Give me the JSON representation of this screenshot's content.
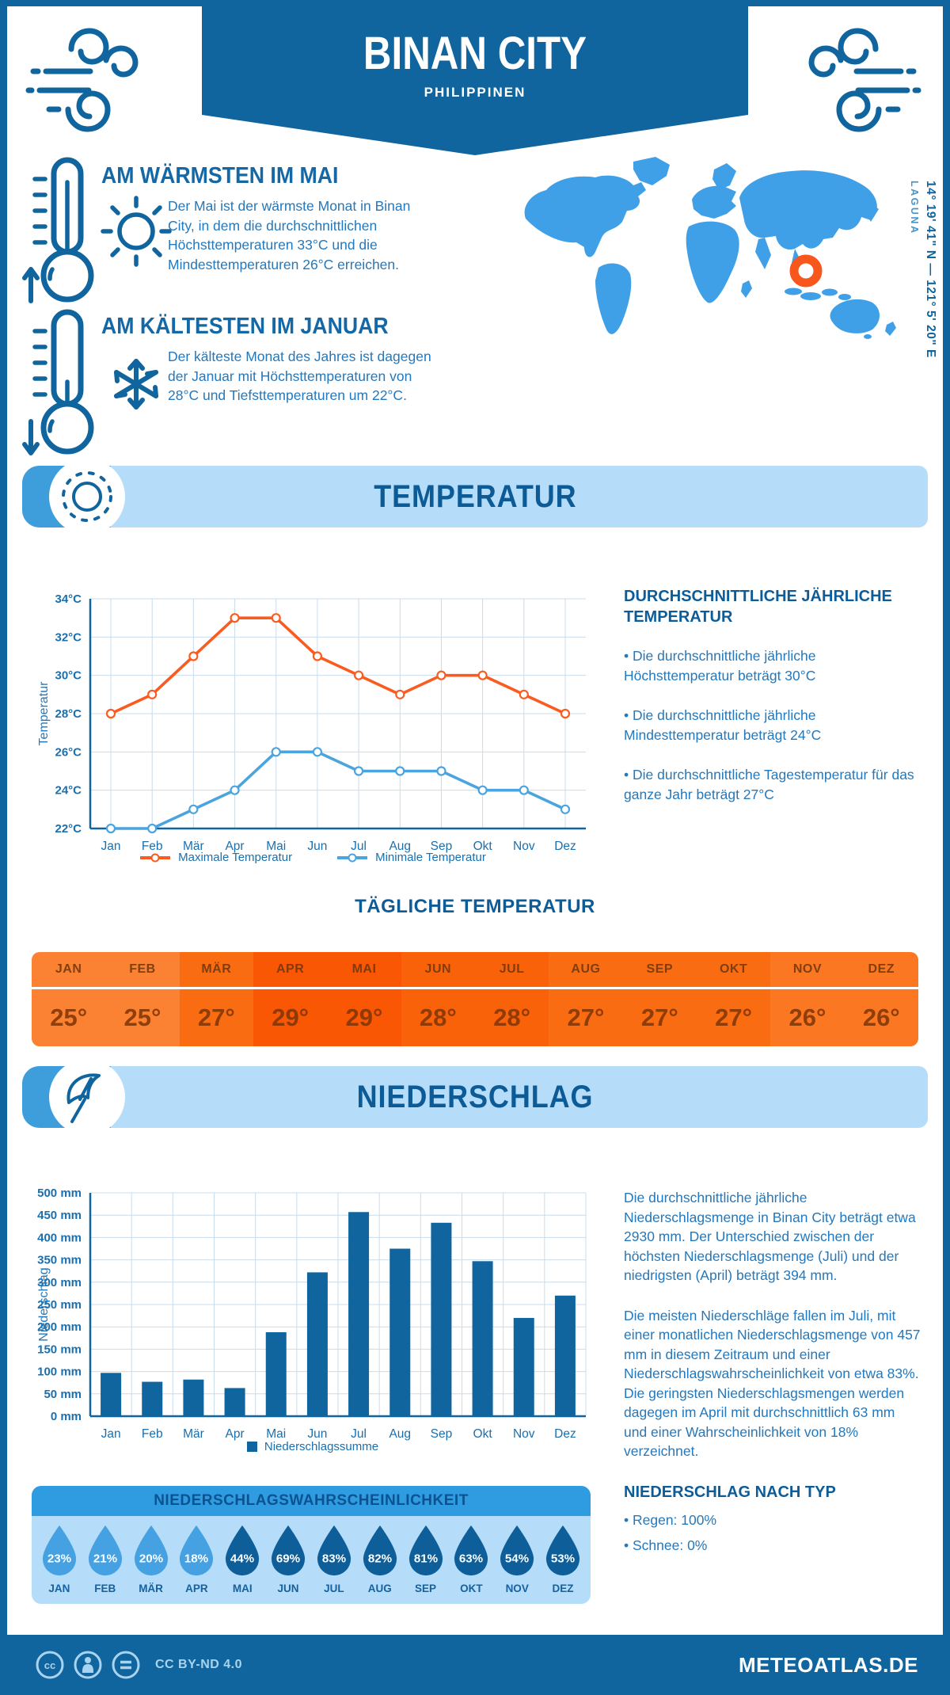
{
  "header": {
    "title": "BINAN CITY",
    "subtitle": "PHILIPPINEN",
    "coordinates": "14° 19' 41\" N — 121° 5' 20\" E",
    "region": "LAGUNA"
  },
  "highlights": {
    "warmest": {
      "heading": "AM WÄRMSTEN IM MAI",
      "text": "Der Mai ist der wärmste Monat in Binan City, in dem die durchschnittlichen Höchsttemperaturen 33°C und die Mindesttemperaturen 26°C erreichen."
    },
    "coldest": {
      "heading": "AM KÄLTESTEN IM JANUAR",
      "text": "Der kälteste Monat des Jahres ist dagegen der Januar mit Höchsttemperaturen von 28°C und Tiefsttemperaturen um 22°C."
    }
  },
  "temperature": {
    "banner": "TEMPERATUR",
    "annual_heading": "DURCHSCHNITTLICHE JÄHRLICHE TEMPERATUR",
    "annual_bullets": [
      "• Die durchschnittliche jährliche Höchsttemperatur beträgt 30°C",
      "• Die durchschnittliche jährliche Mindesttemperatur beträgt 24°C",
      "• Die durchschnittliche Tagestemperatur für das ganze Jahr beträgt 27°C"
    ],
    "daily_heading": "TÄGLICHE TEMPERATUR",
    "daily_months": [
      "JAN",
      "FEB",
      "MÄR",
      "APR",
      "MAI",
      "JUN",
      "JUL",
      "AUG",
      "SEP",
      "OKT",
      "NOV",
      "DEZ"
    ],
    "daily_values": [
      "25°",
      "25°",
      "27°",
      "29°",
      "29°",
      "28°",
      "28°",
      "27°",
      "27°",
      "27°",
      "26°",
      "26°"
    ],
    "daily_cell_colors": [
      "#fb8133",
      "#fb8133",
      "#fa6c12",
      "#f95704",
      "#f95704",
      "#fa6209",
      "#fa6209",
      "#fa6c12",
      "#fa6c12",
      "#fa6c12",
      "#fb7722",
      "#fb7722"
    ]
  },
  "precipitation": {
    "banner": "NIEDERSCHLAG",
    "paragraphs": [
      "Die durchschnittliche jährliche Niederschlagsmenge in Binan City beträgt etwa 2930 mm. Der Unterschied zwischen der höchsten Niederschlagsmenge (Juli) und der niedrigsten (April) beträgt 394 mm.",
      "Die meisten Niederschläge fallen im Juli, mit einer monatlichen Niederschlagsmenge von 457 mm in diesem Zeitraum und einer Niederschlagswahrscheinlichkeit von etwa 83%. Die geringsten Niederschlagsmengen werden dagegen im April mit durchschnittlich 63 mm und einer Wahrscheinlichkeit von 18% verzeichnet."
    ],
    "type_heading": "NIEDERSCHLAG NACH TYP",
    "type_bullets": [
      "• Regen: 100%",
      "• Schnee: 0%"
    ],
    "probability": {
      "title": "NIEDERSCHLAGSWAHRSCHEINLICHKEIT",
      "months": [
        "JAN",
        "FEB",
        "MÄR",
        "APR",
        "MAI",
        "JUN",
        "JUL",
        "AUG",
        "SEP",
        "OKT",
        "NOV",
        "DEZ"
      ],
      "percents": [
        23,
        21,
        20,
        18,
        44,
        69,
        83,
        82,
        81,
        63,
        54,
        53
      ],
      "drop_color_low": "#45a1e1",
      "drop_color_high": "#0e5e99"
    }
  },
  "footer": {
    "license": "CC BY-ND 4.0",
    "site": "METEOATLAS.DE"
  },
  "colors": {
    "primary": "#11659e",
    "heading": "#0d5c97",
    "body_text": "#2478bb",
    "light_panel": "#b5dcf8",
    "accent": "#3e9edc",
    "map": "#3fa0e8",
    "marker": "#f7571c",
    "max_line": "#fa5b1f",
    "min_line": "#4aa4df",
    "bar": "#11659e",
    "grid": "#c9dcec"
  },
  "chart_data": [
    {
      "type": "line",
      "title": "Temperatur",
      "categories": [
        "Jan",
        "Feb",
        "Mär",
        "Apr",
        "Mai",
        "Jun",
        "Jul",
        "Aug",
        "Sep",
        "Okt",
        "Nov",
        "Dez"
      ],
      "series": [
        {
          "name": "Maximale Temperatur",
          "color": "#fa5b1f",
          "values": [
            28,
            29,
            31,
            33,
            33,
            31,
            30,
            29,
            30,
            30,
            29,
            28
          ]
        },
        {
          "name": "Minimale Temperatur",
          "color": "#4aa4df",
          "values": [
            22,
            22,
            23,
            24,
            26,
            26,
            25,
            25,
            25,
            24,
            24,
            23
          ]
        }
      ],
      "xlabel": "",
      "ylabel": "Temperatur",
      "ylim": [
        22,
        34
      ],
      "ytick_step": 2,
      "ytick_suffix": "°C",
      "grid": true,
      "legend_position": "bottom"
    },
    {
      "type": "bar",
      "title": "Niederschlag",
      "categories": [
        "Jan",
        "Feb",
        "Mär",
        "Apr",
        "Mai",
        "Jun",
        "Jul",
        "Aug",
        "Sep",
        "Okt",
        "Nov",
        "Dez"
      ],
      "values": [
        97,
        77,
        82,
        63,
        188,
        322,
        457,
        375,
        433,
        347,
        220,
        270
      ],
      "legend": "Niederschlagssumme",
      "xlabel": "",
      "ylabel": "Niederschlag",
      "ylim": [
        0,
        500
      ],
      "ytick_step": 50,
      "ytick_suffix": " mm",
      "grid": true,
      "legend_position": "bottom",
      "color": "#11659e"
    }
  ]
}
